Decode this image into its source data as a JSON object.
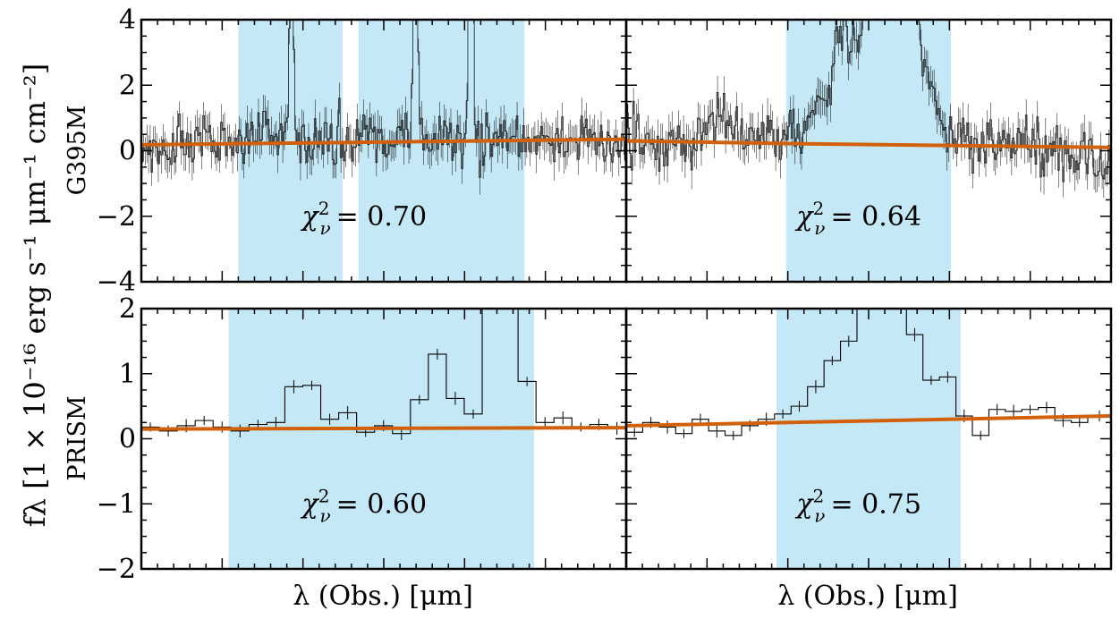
{
  "figure": {
    "ylabel": "fλ [1 × 10⁻¹⁶ erg s⁻¹ μm⁻¹ cm⁻²]",
    "xlabel": "λ (Obs.) [μm]",
    "row_labels": [
      "G395M",
      "PRISM"
    ]
  },
  "colors": {
    "shade": "#c5e8f7",
    "fit": "#d2600a",
    "spectrum": "#000000"
  },
  "chart_data": [
    {
      "type": "line",
      "panel": "G395M-left",
      "row_label": "G395M",
      "ylim": [
        -4,
        4
      ],
      "yticks": [
        -4,
        -2,
        0,
        2,
        4
      ],
      "ytick_labels": [
        "−4",
        "−2",
        "0",
        "2",
        "4"
      ],
      "xlim": [
        0,
        1
      ],
      "shaded_regions": [
        [
          0.2,
          0.415
        ],
        [
          0.448,
          0.79
        ]
      ],
      "lines": [
        {
          "center": 0.31,
          "amp": 6.5,
          "width": 0.004
        },
        {
          "center": 0.565,
          "amp": 9.0,
          "width": 0.004
        },
        {
          "center": 0.68,
          "amp": 9.0,
          "width": 0.004
        }
      ],
      "continuum_bumps": [
        {
          "center": 0.26,
          "amp": 0.5,
          "width": 0.02
        },
        {
          "center": 0.48,
          "amp": 0.4,
          "width": 0.02
        }
      ],
      "n_bins": 300,
      "noise": 0.42,
      "fit": {
        "x": [
          0,
          1
        ],
        "y": [
          0.18,
          0.35
        ]
      },
      "annotation": "χ²_ν = 0.70",
      "annotation_parts": {
        "chi": "χ",
        "sup": "2",
        "sub": "ν",
        "rest": "= 0.70"
      },
      "annotation_pos": {
        "x": 0.46,
        "y": -2.0
      }
    },
    {
      "type": "line",
      "panel": "G395M-right",
      "row_label": "G395M",
      "ylim": [
        -4,
        4
      ],
      "xlim": [
        0,
        1
      ],
      "shaded_regions": [
        [
          0.33,
          0.67
        ]
      ],
      "lines": [
        {
          "center": 0.44,
          "amp": 1.5,
          "width": 0.012
        },
        {
          "center": 0.54,
          "amp": 4.0,
          "width": 0.05
        },
        {
          "center": 0.5,
          "amp": 1.8,
          "width": 0.09
        },
        {
          "center": 0.58,
          "amp": 2.0,
          "width": 0.02
        }
      ],
      "continuum_bumps": [
        {
          "center": 0.19,
          "amp": 0.9,
          "width": 0.02
        }
      ],
      "n_bins": 300,
      "noise": 0.42,
      "fit": {
        "x": [
          0,
          0.33,
          1
        ],
        "y": [
          0.3,
          0.22,
          0.1
        ]
      },
      "annotation": "χ²_ν = 0.64",
      "annotation_parts": {
        "chi": "χ",
        "sup": "2",
        "sub": "ν",
        "rest": "= 0.64"
      },
      "annotation_pos": {
        "x": 0.48,
        "y": -2.0
      }
    },
    {
      "type": "line",
      "panel": "PRISM-left",
      "row_label": "PRISM",
      "ylim": [
        -2,
        2
      ],
      "yticks": [
        -2,
        -1,
        0,
        1,
        2
      ],
      "ytick_labels": [
        "−2",
        "−1",
        "0",
        "1",
        "2"
      ],
      "xlim": [
        0,
        1
      ],
      "shaded_regions": [
        [
          0.18,
          0.81
        ]
      ],
      "step_x": [
        0.0,
        0.037,
        0.074,
        0.111,
        0.148,
        0.185,
        0.222,
        0.259,
        0.296,
        0.333,
        0.37,
        0.407,
        0.444,
        0.481,
        0.518,
        0.555,
        0.592,
        0.629,
        0.666,
        0.703,
        0.74,
        0.777,
        0.814,
        0.851,
        0.888,
        0.925,
        0.962,
        1.0
      ],
      "step_y": [
        0.18,
        0.12,
        0.2,
        0.28,
        0.18,
        0.12,
        0.22,
        0.25,
        0.8,
        0.82,
        0.3,
        0.4,
        0.1,
        0.2,
        0.08,
        0.6,
        1.3,
        0.62,
        0.38,
        4.0,
        4.0,
        0.88,
        0.25,
        0.32,
        0.18,
        0.22,
        0.16
      ],
      "fit": {
        "x": [
          0,
          1
        ],
        "y": [
          0.15,
          0.17
        ]
      },
      "annotation": "χ²_ν = 0.60",
      "annotation_parts": {
        "chi": "χ",
        "sup": "2",
        "sub": "ν",
        "rest": "= 0.60"
      },
      "annotation_pos": {
        "x": 0.46,
        "y": -1.0
      }
    },
    {
      "type": "line",
      "panel": "PRISM-right",
      "row_label": "PRISM",
      "ylim": [
        -2,
        2
      ],
      "xlim": [
        0,
        1
      ],
      "shaded_regions": [
        [
          0.31,
          0.69
        ]
      ],
      "step_x": [
        0.0,
        0.034,
        0.068,
        0.102,
        0.136,
        0.17,
        0.204,
        0.238,
        0.272,
        0.306,
        0.34,
        0.374,
        0.408,
        0.442,
        0.476,
        0.51,
        0.544,
        0.578,
        0.612,
        0.646,
        0.68,
        0.714,
        0.748,
        0.782,
        0.816,
        0.85,
        0.884,
        0.918,
        0.952,
        1.0
      ],
      "step_y": [
        0.1,
        0.25,
        0.18,
        0.08,
        0.3,
        0.12,
        0.05,
        0.2,
        0.3,
        0.38,
        0.5,
        0.8,
        1.2,
        1.5,
        2.5,
        3.0,
        2.3,
        1.6,
        0.9,
        0.95,
        0.35,
        0.05,
        0.45,
        0.42,
        0.45,
        0.48,
        0.28,
        0.25,
        0.35
      ],
      "fit": {
        "x": [
          0,
          1
        ],
        "y": [
          0.2,
          0.35
        ]
      },
      "annotation": "χ²_ν = 0.75",
      "annotation_parts": {
        "chi": "χ",
        "sup": "2",
        "sub": "ν",
        "rest": "= 0.75"
      },
      "annotation_pos": {
        "x": 0.48,
        "y": -1.0
      }
    }
  ]
}
